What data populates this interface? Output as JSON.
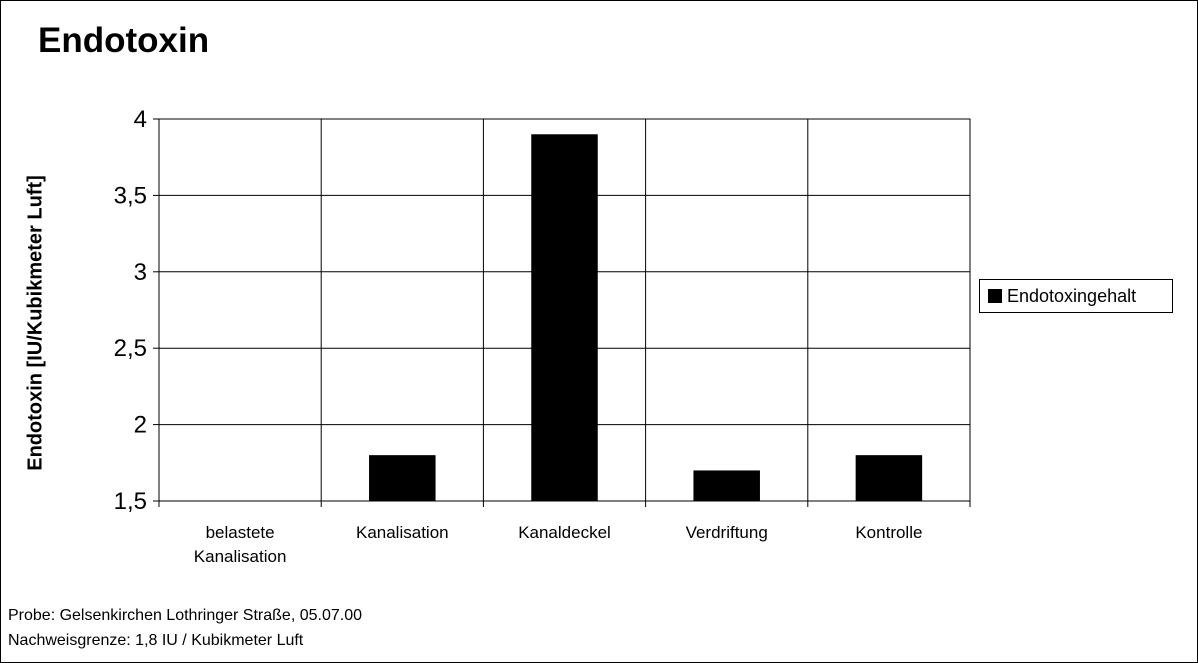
{
  "chart_data": {
    "type": "bar",
    "title": "Endotoxin",
    "ylabel": "Endotoxin [IU/Kubikmeter Luft]",
    "xlabel": "",
    "categories": [
      [
        "belastete",
        "Kanalisation"
      ],
      [
        "Kanalisation"
      ],
      [
        "Kanaldeckel"
      ],
      [
        "Verdriftung"
      ],
      [
        "Kontrolle"
      ]
    ],
    "series": [
      {
        "name": "Endotoxingehalt",
        "values": [
          1.5,
          1.8,
          3.9,
          1.7,
          1.8
        ],
        "color": "#000000"
      }
    ],
    "ylim": [
      1.5,
      4
    ],
    "yticks": [
      1.5,
      2,
      2.5,
      3,
      3.5,
      4
    ],
    "ytick_labels": [
      "1,5",
      "2",
      "2,5",
      "3",
      "3,5",
      "4"
    ],
    "grid": true,
    "legend_position": "right",
    "notes": [
      "Probe: Gelsenkirchen Lothringer Straße, 05.07.00",
      "Nachweisgrenze: 1,8 IU / Kubikmeter Luft"
    ]
  }
}
